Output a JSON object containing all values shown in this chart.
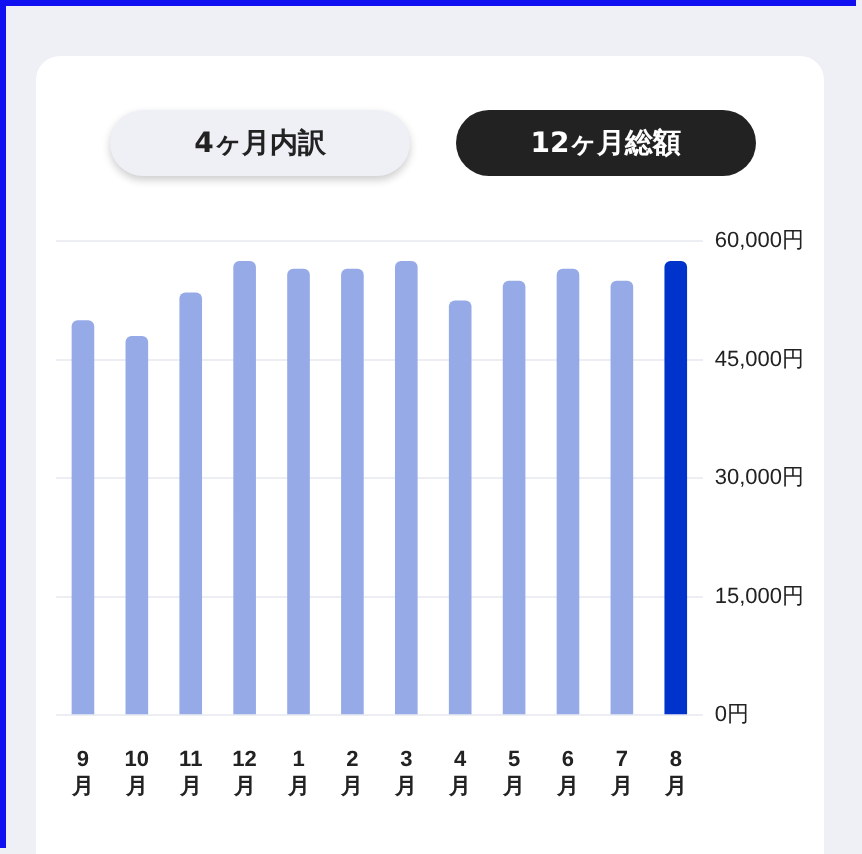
{
  "chart_data": {
    "type": "bar",
    "annotations": [
      "4ヶ月内訳",
      "12ヶ月総額"
    ],
    "categories": [
      "9月",
      "10月",
      "11月",
      "12月",
      "1月",
      "2月",
      "3月",
      "4月",
      "5月",
      "6月",
      "7月",
      "8月"
    ],
    "values": [
      50000,
      48000,
      53500,
      57500,
      56500,
      56500,
      57500,
      52500,
      55000,
      56500,
      55000,
      57500
    ],
    "colors": [
      "#97aae8",
      "#97aae8",
      "#97aae8",
      "#97aae8",
      "#97aae8",
      "#97aae8",
      "#97aae8",
      "#97aae8",
      "#97aae8",
      "#97aae8",
      "#97aae8",
      "#0033cc"
    ],
    "ylim": [
      0,
      60000
    ],
    "yticks": [
      {
        "value": 0,
        "label": "0円"
      },
      {
        "value": 15000,
        "label": "15,000円"
      },
      {
        "value": 30000,
        "label": "30,000円"
      },
      {
        "value": 45000,
        "label": "45,000円"
      },
      {
        "value": 60000,
        "label": "60,000円"
      }
    ],
    "grid": "y",
    "legend": false
  }
}
